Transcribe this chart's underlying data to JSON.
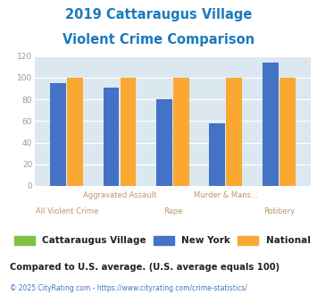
{
  "title_line1": "2019 Cattaraugus Village",
  "title_line2": "Violent Crime Comparison",
  "categories": [
    "All Violent Crime",
    "Aggravated Assault",
    "Rape",
    "Murder & Mans...",
    "Robbery"
  ],
  "top_labels": [
    "",
    "Aggravated Assault",
    "",
    "Murder & Mans...",
    ""
  ],
  "bottom_labels": [
    "All Violent Crime",
    "",
    "Rape",
    "",
    "Robbery"
  ],
  "cattaraugus": [
    0,
    0,
    0,
    0,
    0
  ],
  "new_york": [
    95,
    91,
    80,
    58,
    114
  ],
  "national": [
    100,
    100,
    100,
    100,
    100
  ],
  "color_cattaraugus": "#7dc242",
  "color_new_york": "#4472c4",
  "color_national": "#faa832",
  "ylim": [
    0,
    120
  ],
  "yticks": [
    0,
    20,
    40,
    60,
    80,
    100,
    120
  ],
  "bg_color": "#dce8f0",
  "title_color": "#1a7abf",
  "xlabel_color": "#b8996a",
  "ytick_color": "#999999",
  "legend_labels": [
    "Cattaraugus Village",
    "New York",
    "National"
  ],
  "footer_note": "Compared to U.S. average. (U.S. average equals 100)",
  "footer_copy": "© 2025 CityRating.com - https://www.cityrating.com/crime-statistics/",
  "footer_link_color": "#4472c4",
  "footer_note_color": "#222222"
}
